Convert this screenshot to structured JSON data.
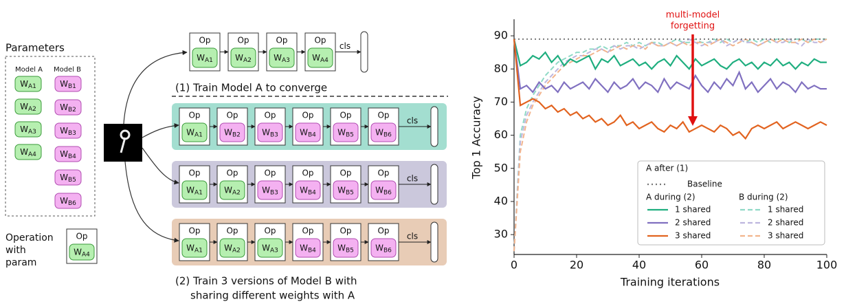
{
  "diagram": {
    "parameters_title": "Parameters",
    "model_a_label": "Model A",
    "model_b_label": "Model B",
    "weight_symbol": "W",
    "op_label": "Op",
    "cls_label": "cls",
    "model_a_weights": [
      "A1",
      "A2",
      "A3",
      "A4"
    ],
    "model_b_weights": [
      "B1",
      "B2",
      "B3",
      "B4",
      "B5",
      "B6"
    ],
    "legend_op": {
      "lines": [
        "Operation",
        "with",
        "param"
      ],
      "weight": "A4"
    },
    "step1": {
      "caption": "(1) Train Model A to converge",
      "weights": [
        "A1",
        "A2",
        "A3",
        "A4"
      ]
    },
    "step2": {
      "caption": [
        "(2) Train 3 versions of Model B with",
        "sharing different weights with A"
      ],
      "rows": [
        [
          "A1",
          "B2",
          "B3",
          "B4",
          "B5",
          "B6"
        ],
        [
          "A1",
          "A2",
          "B3",
          "B4",
          "B5",
          "B6"
        ],
        [
          "A1",
          "A2",
          "A3",
          "B4",
          "B5",
          "B6"
        ]
      ]
    }
  },
  "chart_data": {
    "type": "line",
    "xlabel": "Training iterations",
    "ylabel": "Top 1 Accuracy",
    "annotation": [
      "multi-model",
      "forgetting"
    ],
    "xlim": [
      0,
      100
    ],
    "xticks": [
      0,
      20,
      40,
      60,
      80,
      100
    ],
    "ylim": [
      24,
      95
    ],
    "yticks": [
      30,
      40,
      50,
      60,
      70,
      80,
      90
    ],
    "legend": "lower right",
    "x": [
      0,
      2,
      4,
      6,
      8,
      10,
      12,
      14,
      16,
      18,
      20,
      22,
      24,
      26,
      28,
      30,
      32,
      34,
      36,
      38,
      40,
      42,
      44,
      46,
      48,
      50,
      52,
      54,
      56,
      58,
      60,
      62,
      64,
      66,
      68,
      70,
      72,
      74,
      76,
      78,
      80,
      82,
      84,
      86,
      88,
      90,
      92,
      94,
      96,
      98,
      100
    ],
    "series": [
      {
        "group": "A after (1)",
        "name": "Baseline",
        "color": "#777777",
        "style": "dotted",
        "values": [
          89,
          89,
          89,
          89,
          89,
          89,
          89,
          89,
          89,
          89,
          89,
          89,
          89,
          89,
          89,
          89,
          89,
          89,
          89,
          89,
          89,
          89,
          89,
          89,
          89,
          89,
          89,
          89,
          89,
          89,
          89,
          89,
          89,
          89,
          89,
          89,
          89,
          89,
          89,
          89,
          89,
          89,
          89,
          89,
          89,
          89,
          89,
          89,
          89,
          89,
          89
        ]
      },
      {
        "group": "A during (2)",
        "name": "1 shared",
        "color": "#1fae7f",
        "style": "solid",
        "values": [
          89,
          81,
          82,
          84,
          83,
          85,
          82,
          84,
          81,
          83,
          82,
          83,
          84,
          80,
          83,
          82,
          84,
          81,
          82,
          83,
          81,
          82,
          80,
          82,
          83,
          81,
          84,
          82,
          80,
          83,
          81,
          82,
          83,
          81,
          80,
          82,
          83,
          81,
          82,
          80,
          82,
          81,
          83,
          81,
          82,
          80,
          82,
          81,
          83,
          82,
          82
        ]
      },
      {
        "group": "A during (2)",
        "name": "2 shared",
        "color": "#8070c0",
        "style": "solid",
        "values": [
          89,
          74,
          75,
          73,
          76,
          74,
          75,
          73,
          76,
          74,
          75,
          76,
          74,
          77,
          75,
          73,
          76,
          74,
          75,
          77,
          74,
          76,
          75,
          73,
          77,
          74,
          76,
          75,
          74,
          78,
          75,
          73,
          76,
          74,
          77,
          75,
          79,
          74,
          76,
          73,
          75,
          77,
          74,
          76,
          75,
          73,
          76,
          74,
          75,
          74,
          74
        ]
      },
      {
        "group": "A during (2)",
        "name": "3 shared",
        "color": "#e2631f",
        "style": "solid",
        "values": [
          89,
          69,
          70,
          71,
          70,
          68,
          69,
          67,
          68,
          66,
          67,
          65,
          66,
          64,
          65,
          63,
          64,
          66,
          63,
          64,
          62,
          63,
          64,
          62,
          61,
          63,
          62,
          64,
          61,
          62,
          63,
          62,
          61,
          63,
          62,
          60,
          61,
          59,
          62,
          63,
          62,
          63,
          64,
          62,
          63,
          64,
          63,
          62,
          63,
          64,
          63
        ]
      },
      {
        "group": "B during (2)",
        "name": "1 shared",
        "color": "#8fd9c6",
        "style": "dashed",
        "values": [
          25,
          60,
          68,
          72,
          75,
          78,
          80,
          82,
          83,
          84,
          85,
          85,
          86,
          86,
          87,
          86,
          87,
          87,
          88,
          87,
          88,
          87,
          88,
          88,
          87,
          88,
          89,
          88,
          88,
          89,
          88,
          88,
          89,
          88,
          89,
          88,
          89,
          88,
          89,
          88,
          89,
          88,
          89,
          89,
          88,
          89,
          89,
          88,
          89,
          89,
          89
        ]
      },
      {
        "group": "B during (2)",
        "name": "2 shared",
        "color": "#bdb6de",
        "style": "dashed",
        "values": [
          25,
          58,
          66,
          70,
          73,
          76,
          78,
          80,
          82,
          83,
          84,
          84,
          85,
          86,
          86,
          85,
          87,
          86,
          87,
          87,
          86,
          87,
          88,
          87,
          87,
          88,
          87,
          88,
          89,
          88,
          87,
          88,
          88,
          89,
          87,
          88,
          89,
          88,
          88,
          87,
          88,
          89,
          88,
          88,
          89,
          88,
          87,
          89,
          88,
          88,
          89
        ]
      },
      {
        "group": "B during (2)",
        "name": "3 shared",
        "color": "#f2b48c",
        "style": "dashed",
        "values": [
          25,
          55,
          64,
          69,
          72,
          75,
          77,
          79,
          81,
          82,
          83,
          84,
          84,
          85,
          86,
          85,
          86,
          87,
          86,
          87,
          87,
          86,
          88,
          87,
          87,
          88,
          87,
          88,
          87,
          88,
          88,
          87,
          88,
          89,
          88,
          87,
          88,
          89,
          88,
          87,
          88,
          89,
          88,
          89,
          88,
          88,
          89,
          88,
          89,
          88,
          89
        ]
      }
    ]
  }
}
